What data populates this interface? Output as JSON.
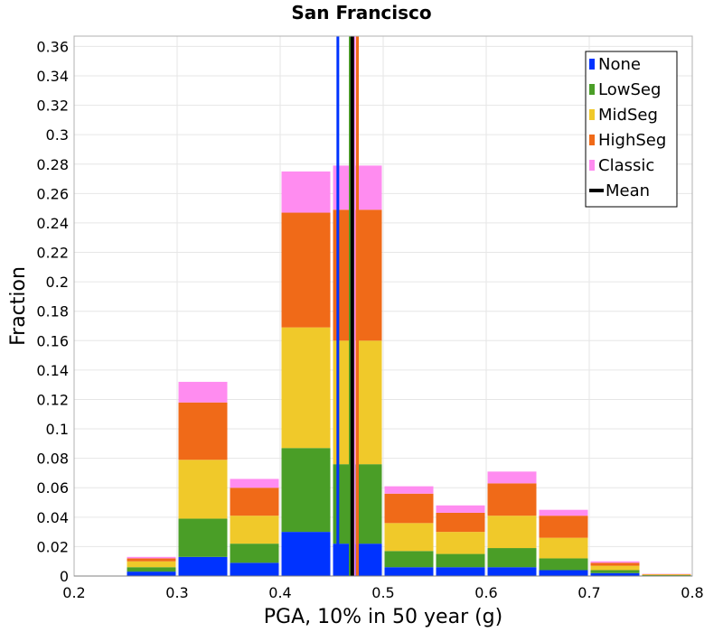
{
  "chart_data": {
    "type": "bar",
    "stacked": true,
    "title": "San Francisco",
    "xlabel": "PGA, 10% in 50 year (g)",
    "ylabel": "Fraction",
    "xlim": [
      0.2,
      0.8
    ],
    "ylim": [
      0,
      0.367
    ],
    "x_ticks": [
      "0.2",
      "0.3",
      "0.4",
      "0.5",
      "0.6",
      "0.7",
      "0.8"
    ],
    "y_ticks": [
      "0",
      "0.02",
      "0.04",
      "0.06",
      "0.08",
      "0.1",
      "0.12",
      "0.14",
      "0.16",
      "0.18",
      "0.2",
      "0.22",
      "0.24",
      "0.26",
      "0.28",
      "0.3",
      "0.32",
      "0.34",
      "0.36"
    ],
    "grid": true,
    "legend_position": "top-right",
    "bin_width": 0.05,
    "bin_starts": [
      0.25,
      0.3,
      0.35,
      0.4,
      0.45,
      0.5,
      0.55,
      0.6,
      0.65,
      0.7,
      0.75
    ],
    "series": [
      {
        "name": "None",
        "color": "#0033ff",
        "values": [
          0.003,
          0.013,
          0.009,
          0.03,
          0.022,
          0.006,
          0.006,
          0.006,
          0.004,
          0.002,
          0.0003
        ]
      },
      {
        "name": "LowSeg",
        "color": "#4a9e27",
        "values": [
          0.003,
          0.026,
          0.013,
          0.057,
          0.054,
          0.011,
          0.009,
          0.013,
          0.008,
          0.002,
          0.0003
        ]
      },
      {
        "name": "MidSeg",
        "color": "#f0c92a",
        "values": [
          0.004,
          0.04,
          0.019,
          0.082,
          0.084,
          0.019,
          0.015,
          0.022,
          0.014,
          0.003,
          0.0004
        ]
      },
      {
        "name": "HighSeg",
        "color": "#f06a18",
        "values": [
          0.002,
          0.039,
          0.019,
          0.078,
          0.089,
          0.02,
          0.013,
          0.022,
          0.015,
          0.002,
          0.0003
        ]
      },
      {
        "name": "Classic",
        "color": "#ff8cf0",
        "values": [
          0.001,
          0.014,
          0.006,
          0.028,
          0.03,
          0.005,
          0.005,
          0.008,
          0.004,
          0.001,
          0.0002
        ]
      }
    ],
    "mean_lines": [
      {
        "series": "None",
        "x": 0.456
      },
      {
        "series": "LowSeg",
        "x": 0.468
      },
      {
        "series": "MidSeg",
        "x": 0.471
      },
      {
        "series": "HighSeg",
        "x": 0.475
      },
      {
        "series": "Classic",
        "x": 0.472
      },
      {
        "series": "Mean",
        "x": 0.47
      }
    ],
    "legend": [
      {
        "label": "None",
        "color": "#0033ff",
        "kind": "box"
      },
      {
        "label": "LowSeg",
        "color": "#4a9e27",
        "kind": "box"
      },
      {
        "label": "MidSeg",
        "color": "#f0c92a",
        "kind": "box"
      },
      {
        "label": "HighSeg",
        "color": "#f06a18",
        "kind": "box"
      },
      {
        "label": "Classic",
        "color": "#ff8cf0",
        "kind": "box"
      },
      {
        "label": "Mean",
        "color": "#000000",
        "kind": "line"
      }
    ]
  }
}
